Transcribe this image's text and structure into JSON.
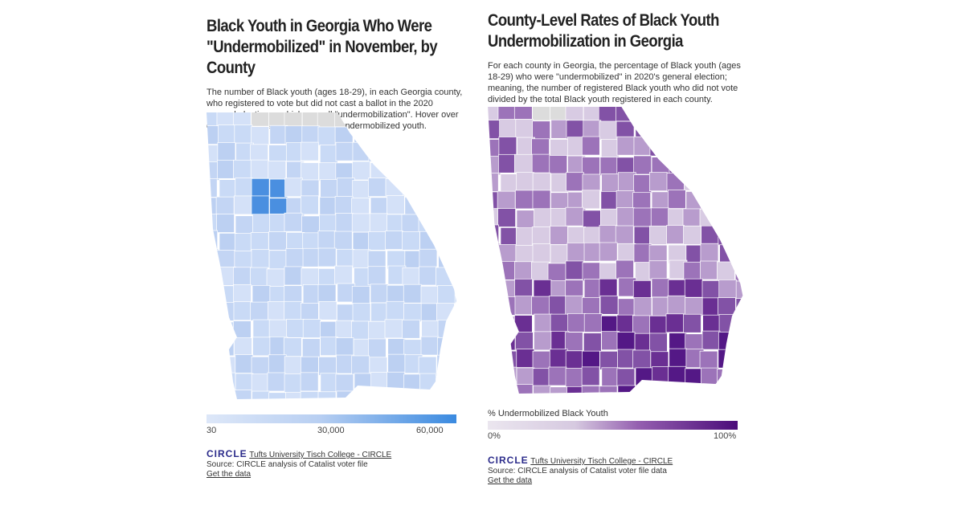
{
  "left": {
    "title_line1": "Black Youth in Georgia Who Were",
    "title_line2": "\"Undermobilized\" in November, by County",
    "description": "The number of Black youth (ages 18-29), in each Georgia county, who registered to vote but did not cast a ballot in the 2020 general election —which we call \"undermobilization\". Hover over each county to see the number of undermobilized youth.",
    "legend": {
      "min": "30",
      "mid": "30,000",
      "max": "60,000",
      "color_low": "#dbe6f8",
      "color_high": "#3a8ae0"
    },
    "logo": "CIRCLE",
    "credit_link": "Tufts University Tisch College - CIRCLE",
    "source": "Source: CIRCLE analysis of Catalist voter file",
    "data_link": "Get the data"
  },
  "right": {
    "title_line1": "County-Level Rates of Black Youth",
    "title_line2": "Undermobilization in Georgia",
    "description": "For each county in Georgia, the percentage of Black youth (ages 18-29) who were \"undermobilized\" in 2020's general election; meaning, the number of registered Black youth who did not vote divided by the total Black youth registered in each county.",
    "legend": {
      "title": "% Undermobilized Black Youth",
      "min": "0%",
      "max": "100%",
      "color_low": "#ebe6ef",
      "color_high": "#4b0c7a"
    },
    "logo": "CIRCLE",
    "credit_link": "Tufts University Tisch College - CIRCLE",
    "source": "Source: CIRCLE analysis of Catalist voter file data",
    "data_link": "Get the data"
  },
  "no_data_color": "#dcdcdc"
}
